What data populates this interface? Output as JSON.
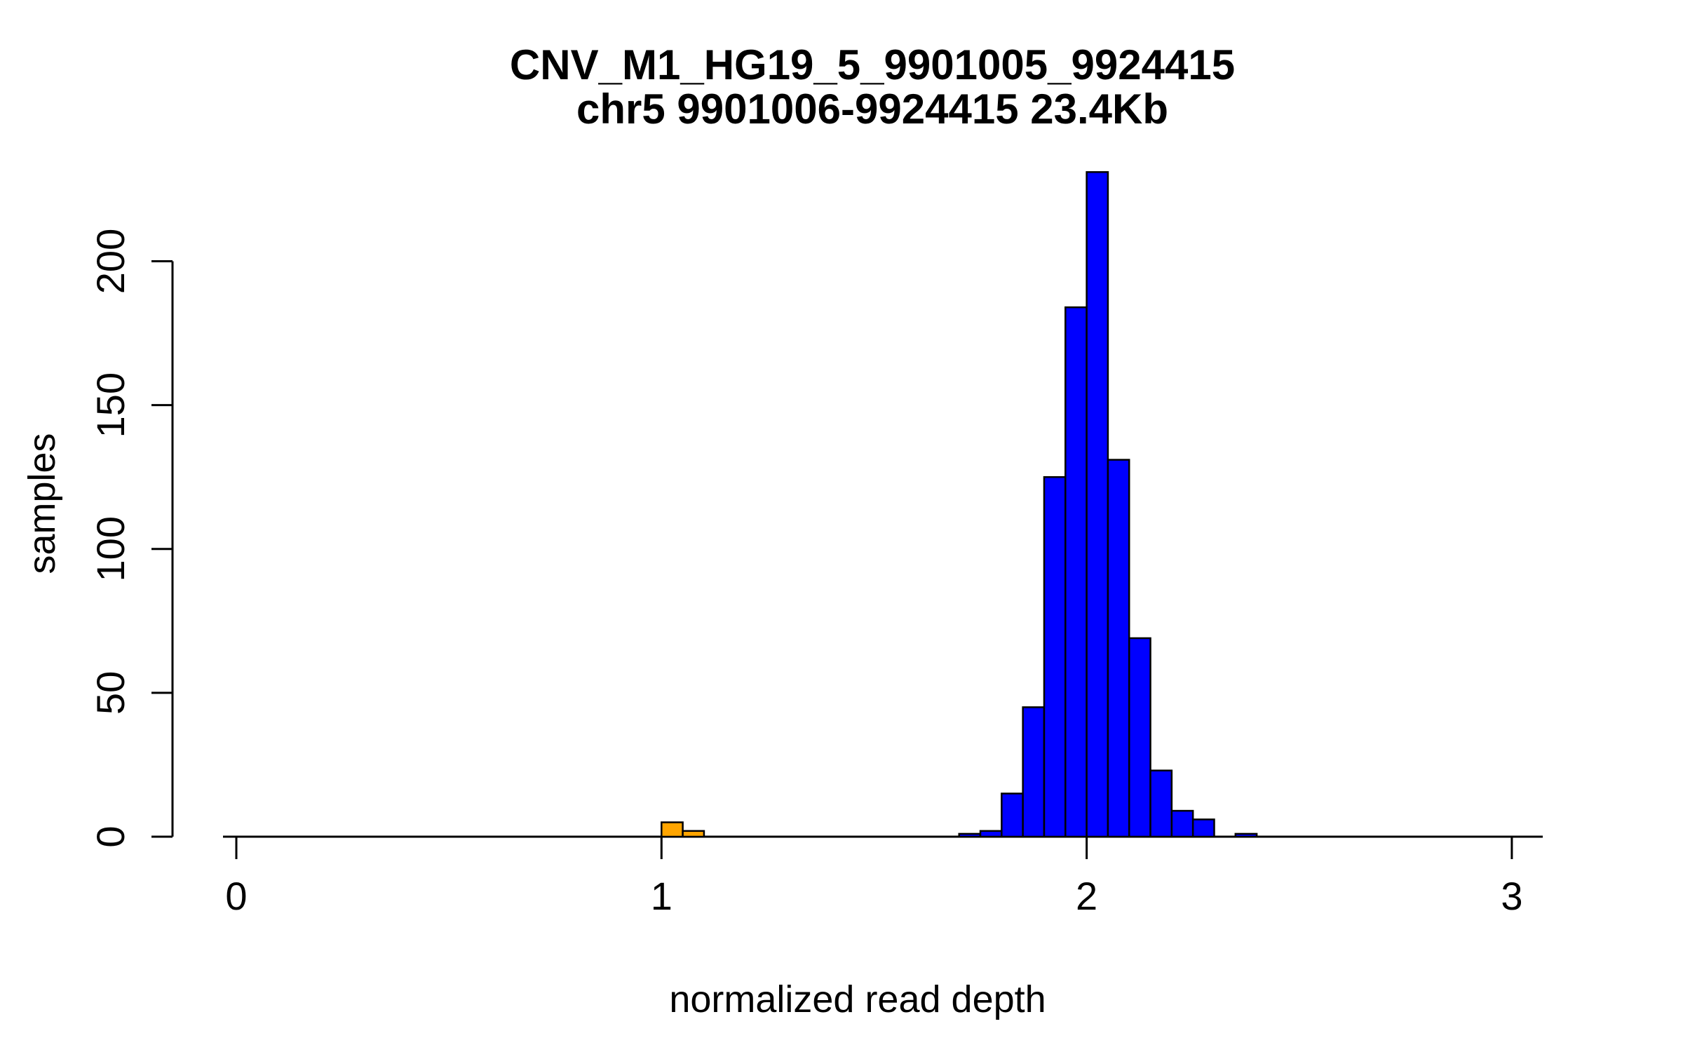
{
  "figure": {
    "title": "CNV_M1_HG19_5_9901005_9924415",
    "subtitle": "chr5 9901006-9924415 23.4Kb"
  },
  "chart_data": {
    "type": "bar",
    "chart_kind": "histogram",
    "title": "CNV_M1_HG19_5_9901005_9924415",
    "subtitle": "chr5 9901006-9924415 23.4Kb",
    "xlabel": "normalized read depth",
    "ylabel": "samples",
    "x_ticks": [
      0,
      1,
      2,
      3
    ],
    "y_ticks": [
      0,
      50,
      100,
      150,
      200
    ],
    "xlim": [
      -0.03,
      3.07
    ],
    "ylim": [
      0,
      235
    ],
    "bin_width": 0.05,
    "grid": "off",
    "legend": "none",
    "axis_color": "#000000",
    "bar_border_color": "#000000",
    "series": [
      {
        "name": "orange-bars",
        "color": "#FFA500",
        "bins": [
          {
            "from": 1.0,
            "to": 1.05,
            "count": 5
          },
          {
            "from": 1.05,
            "to": 1.1,
            "count": 2
          }
        ]
      },
      {
        "name": "blue-bars",
        "color": "#0000FF",
        "bins": [
          {
            "from": 1.7,
            "to": 1.75,
            "count": 1
          },
          {
            "from": 1.75,
            "to": 1.8,
            "count": 2
          },
          {
            "from": 1.8,
            "to": 1.85,
            "count": 15
          },
          {
            "from": 1.85,
            "to": 1.9,
            "count": 45
          },
          {
            "from": 1.9,
            "to": 1.95,
            "count": 125
          },
          {
            "from": 1.95,
            "to": 2.0,
            "count": 184
          },
          {
            "from": 2.0,
            "to": 2.05,
            "count": 231
          },
          {
            "from": 2.05,
            "to": 2.1,
            "count": 131
          },
          {
            "from": 2.1,
            "to": 2.15,
            "count": 69
          },
          {
            "from": 2.15,
            "to": 2.2,
            "count": 23
          },
          {
            "from": 2.2,
            "to": 2.25,
            "count": 9
          },
          {
            "from": 2.25,
            "to": 2.3,
            "count": 6
          },
          {
            "from": 2.3,
            "to": 2.35,
            "count": 0
          },
          {
            "from": 2.35,
            "to": 2.4,
            "count": 1
          }
        ]
      }
    ]
  }
}
